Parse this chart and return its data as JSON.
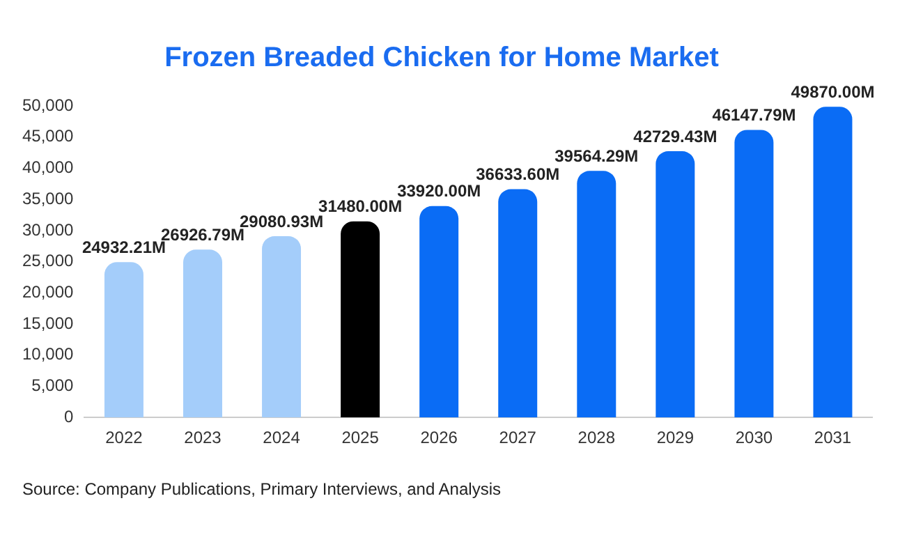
{
  "chart_data": {
    "type": "bar",
    "title": "Frozen Breaded Chicken for Home Market",
    "categories": [
      "2022",
      "2023",
      "2024",
      "2025",
      "2026",
      "2027",
      "2028",
      "2029",
      "2030",
      "2031"
    ],
    "values": [
      24932.21,
      26926.79,
      29080.93,
      31480.0,
      33920.0,
      36633.6,
      39564.29,
      42729.43,
      46147.79,
      49870.0
    ],
    "colors": [
      "#a4cdfa",
      "#a4cdfa",
      "#a4cdfa",
      "#000000",
      "#0a6cf5",
      "#0a6cf5",
      "#0a6cf5",
      "#0a6cf5",
      "#0a6cf5",
      "#0a6cf5"
    ],
    "value_labels": [
      "24932.21M",
      "26926.79M",
      "29080.93M",
      "31480.00M",
      "33920.00M",
      "36633.60M",
      "39564.29M",
      "42729.43M",
      "46147.79M",
      "49870.00M"
    ],
    "ylim": [
      0,
      50000
    ],
    "yticks": [
      {
        "value": 0,
        "label": "0"
      },
      {
        "value": 5000,
        "label": "5,000"
      },
      {
        "value": 10000,
        "label": "10,000"
      },
      {
        "value": 15000,
        "label": "15,000"
      },
      {
        "value": 20000,
        "label": "20,000"
      },
      {
        "value": 25000,
        "label": "25,000"
      },
      {
        "value": 30000,
        "label": "30,000"
      },
      {
        "value": 35000,
        "label": "35,000"
      },
      {
        "value": 40000,
        "label": "40,000"
      },
      {
        "value": 45000,
        "label": "45,000"
      },
      {
        "value": 50000,
        "label": "50,000"
      }
    ],
    "grid": false,
    "legend": false,
    "annotations": [
      "Source: Company Publications, Primary Interviews, and Analysis"
    ]
  }
}
